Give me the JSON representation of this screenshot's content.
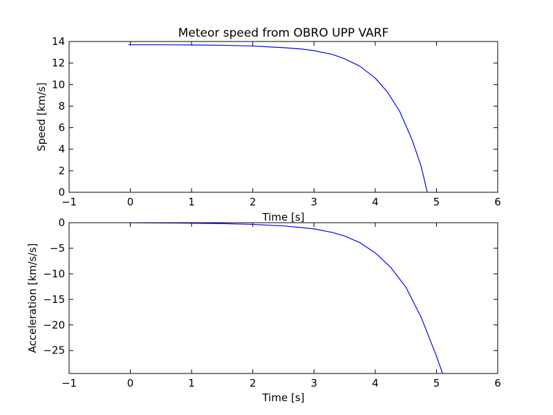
{
  "chart_data": [
    {
      "type": "line",
      "title": "Meteor speed from  OBRO UPP VARF",
      "xlabel": "Time [s]",
      "ylabel": "Speed [km/s]",
      "xlim": [
        -1,
        6
      ],
      "ylim": [
        0,
        14
      ],
      "xticks": [
        -1,
        0,
        1,
        2,
        3,
        4,
        5,
        6
      ],
      "yticks": [
        0,
        2,
        4,
        6,
        8,
        10,
        12,
        14
      ],
      "xtick_labels": [
        "−1",
        "0",
        "1",
        "2",
        "3",
        "4",
        "5",
        "6"
      ],
      "ytick_labels": [
        "0",
        "2",
        "4",
        "6",
        "8",
        "10",
        "12",
        "14"
      ],
      "grid": false,
      "color": "#0000ff",
      "series": [
        {
          "x": [
            -0.03,
            0.5,
            1.0,
            1.5,
            2.0,
            2.5,
            2.8,
            3.0,
            3.3,
            3.5,
            3.75,
            4.0,
            4.2,
            4.4,
            4.6,
            4.75,
            4.85
          ],
          "y": [
            13.7,
            13.7,
            13.68,
            13.65,
            13.58,
            13.43,
            13.3,
            13.15,
            12.8,
            12.4,
            11.7,
            10.6,
            9.3,
            7.5,
            4.9,
            2.4,
            0.0
          ]
        }
      ]
    },
    {
      "type": "line",
      "xlabel": "Time [s]",
      "ylabel": "Acceleration [km/s/s]",
      "xlim": [
        -1,
        6
      ],
      "ylim": [
        -29.5,
        0
      ],
      "xticks": [
        -1,
        0,
        1,
        2,
        3,
        4,
        5,
        6
      ],
      "yticks": [
        0,
        -5,
        -10,
        -15,
        -20,
        -25
      ],
      "xtick_labels": [
        "−1",
        "0",
        "1",
        "2",
        "3",
        "4",
        "5",
        "6"
      ],
      "ytick_labels": [
        "0",
        "−5",
        "−10",
        "−15",
        "−20",
        "−25"
      ],
      "grid": false,
      "color": "#0000ff",
      "series": [
        {
          "x": [
            0.0,
            0.5,
            1.0,
            1.5,
            2.0,
            2.5,
            3.0,
            3.3,
            3.5,
            3.75,
            4.0,
            4.25,
            4.5,
            4.75,
            5.0,
            5.1
          ],
          "y": [
            0.0,
            -0.03,
            -0.08,
            -0.17,
            -0.33,
            -0.62,
            -1.2,
            -1.9,
            -2.6,
            -3.9,
            -5.9,
            -8.7,
            -12.6,
            -18.5,
            -26.1,
            -29.5
          ]
        }
      ]
    }
  ]
}
